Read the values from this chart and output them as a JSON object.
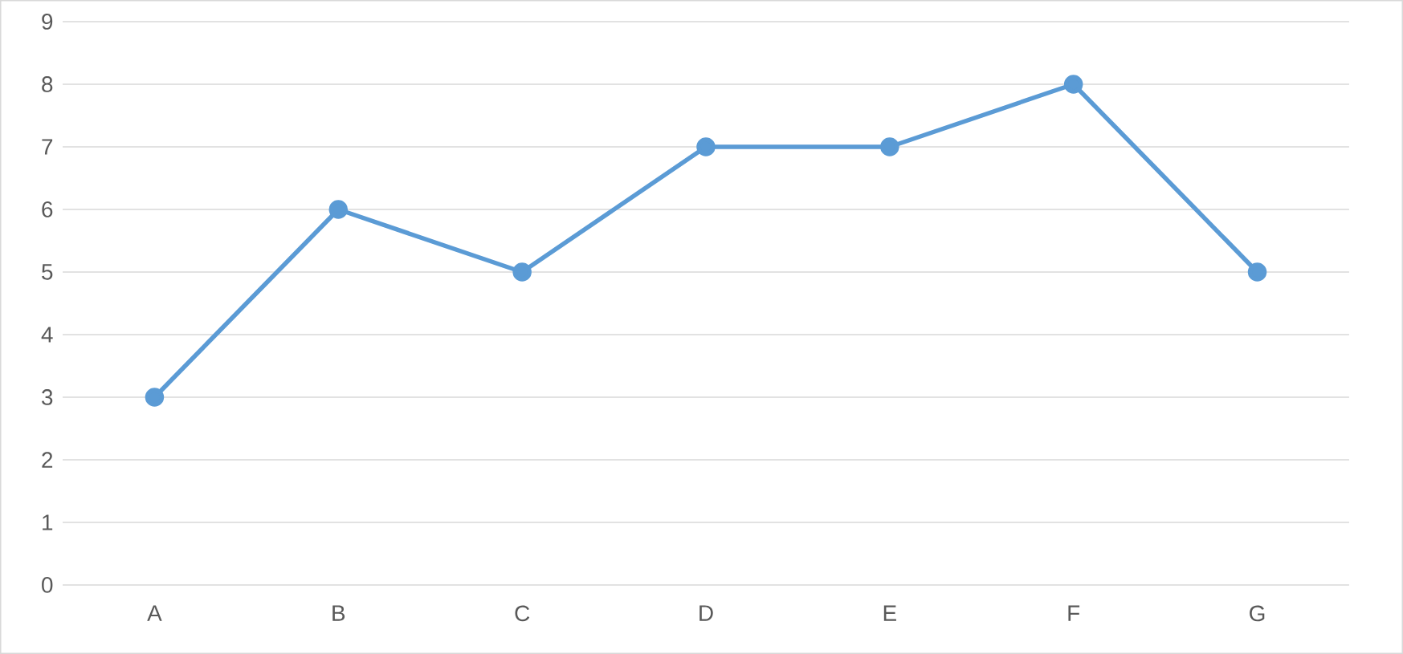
{
  "chart_data": {
    "type": "line",
    "categories": [
      "A",
      "B",
      "C",
      "D",
      "E",
      "F",
      "G"
    ],
    "values": [
      3,
      6,
      5,
      7,
      7,
      8,
      5
    ],
    "color": "#5b9bd5",
    "marker": "circle",
    "ylim": [
      0,
      9
    ],
    "yticks": [
      0,
      1,
      2,
      3,
      4,
      5,
      6,
      7,
      8,
      9
    ],
    "grid": "y"
  }
}
